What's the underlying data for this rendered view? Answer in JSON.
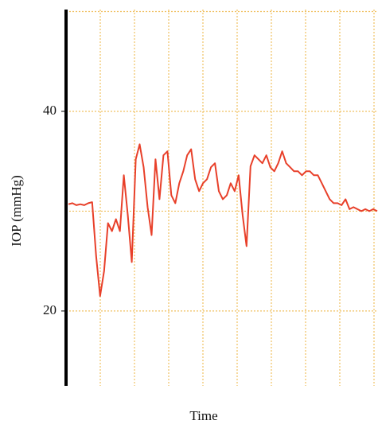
{
  "chart_data": {
    "type": "line",
    "y_label": "IOP (mmHg)",
    "x_label": "Time",
    "color": "#e8402a",
    "ylim": [
      12.5,
      50.2
    ],
    "yticks": [
      20,
      40
    ],
    "yminor": [
      30,
      50
    ],
    "grid": true,
    "values": [
      30.7,
      30.8,
      30.6,
      30.7,
      30.6,
      30.8,
      30.9,
      25.5,
      21.5,
      24,
      28.8,
      28,
      29.2,
      28,
      33.6,
      29.6,
      24.9,
      35.2,
      36.7,
      34.4,
      30.4,
      27.6,
      35.2,
      31.2,
      35.6,
      36,
      31.6,
      30.8,
      32.8,
      34,
      35.6,
      36.2,
      33.2,
      32,
      32.8,
      33.2,
      34.4,
      34.8,
      32,
      31.2,
      31.6,
      32.8,
      32,
      33.6,
      29.6,
      26.5,
      34.5,
      35.6,
      35.2,
      34.8,
      35.6,
      34.4,
      34,
      34.8,
      36,
      34.8,
      34.4,
      34,
      34,
      33.6,
      34,
      34,
      33.6,
      33.6,
      32.8,
      32,
      31.2,
      30.8,
      30.8,
      30.6,
      31.2,
      30.2,
      30.4,
      30.2,
      30,
      30.2,
      30,
      30.2,
      30
    ]
  }
}
